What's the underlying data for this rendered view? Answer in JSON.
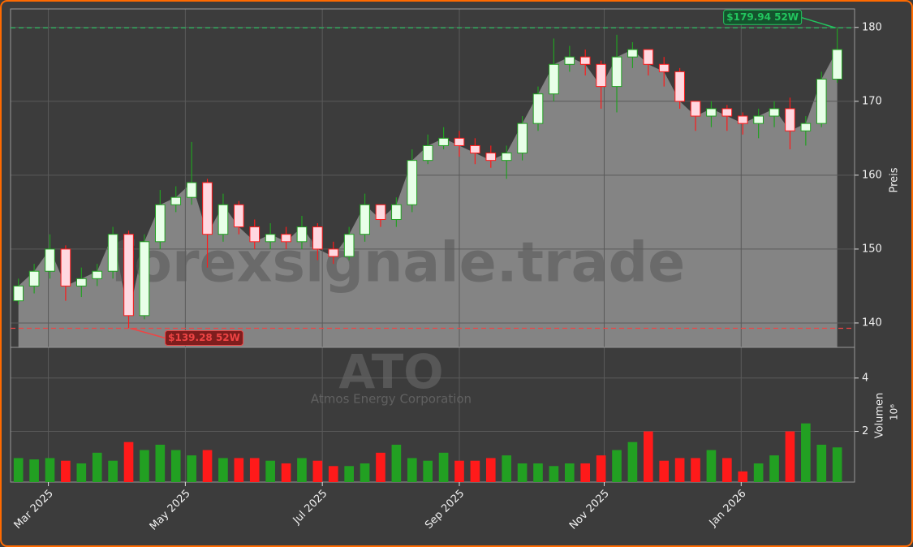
{
  "chart_data": {
    "type": "candlestick",
    "watermark": "forexsignale.trade",
    "ticker": "ATO",
    "company": "Atmos Energy Corporation",
    "ylabel": "Preis",
    "volume_label": "Volumen",
    "volume_unit": "10⁶",
    "up_color": "#22a022",
    "down_color": "#ff1a1a",
    "area_color": "#888888",
    "grid": true,
    "xlim": [
      -0.5,
      53.1
    ],
    "xticks": [
      {
        "value": 1.9,
        "label": "Mar 2025"
      },
      {
        "value": 10.6,
        "label": "May 2025"
      },
      {
        "value": 19.3,
        "label": "Jul 2025"
      },
      {
        "value": 28.0,
        "label": "Sep 2025"
      },
      {
        "value": 37.2,
        "label": "Nov 2025"
      },
      {
        "value": 45.9,
        "label": "Jan 2026"
      }
    ],
    "ylim": [
      136.7,
      182.5
    ],
    "yticks": [
      140,
      150,
      160,
      170,
      180
    ],
    "volume_ylim": [
      0.1,
      5.15
    ],
    "volume_yticks": [
      2,
      4
    ],
    "open": [
      143,
      145,
      147,
      150,
      145,
      146,
      147,
      152,
      141,
      151,
      156,
      157,
      159,
      152,
      156,
      153,
      151,
      152,
      151,
      153,
      150,
      149,
      152,
      156,
      154,
      156,
      162,
      164,
      165,
      164,
      163,
      162,
      163,
      167,
      171,
      175,
      176,
      175,
      172,
      176,
      177,
      175,
      174,
      170,
      168,
      169,
      168,
      167,
      168,
      169,
      166,
      167,
      173
    ],
    "high": [
      146,
      148,
      152,
      150.5,
      147.5,
      148,
      153,
      152.5,
      152,
      158,
      158.5,
      164.5,
      159.5,
      157.5,
      156.5,
      154,
      153.5,
      153,
      154.5,
      153.5,
      151,
      153,
      157.5,
      156,
      157,
      163.5,
      165.5,
      166.5,
      166,
      165,
      164,
      164,
      168,
      172,
      178.5,
      177.5,
      177,
      175.5,
      179,
      178,
      177,
      176,
      174.5,
      170,
      170,
      169.5,
      168.5,
      169,
      170,
      170.5,
      168,
      174,
      179.94
    ],
    "low": [
      142.5,
      144,
      146,
      143,
      143.5,
      145,
      146,
      139.28,
      140.5,
      150,
      155,
      156,
      147.5,
      151,
      152,
      150,
      150,
      150,
      150,
      148.5,
      148,
      148.5,
      151,
      153,
      153,
      155,
      161.5,
      163.5,
      162.5,
      161.5,
      161,
      159.5,
      162,
      166,
      170,
      174,
      173.5,
      169,
      168.5,
      174.5,
      173.5,
      172,
      169,
      166,
      166.5,
      166,
      165.5,
      165,
      166.5,
      163.5,
      164,
      166.5,
      172.5
    ],
    "close": [
      145,
      147,
      150,
      145,
      146,
      147,
      152,
      141,
      151,
      156,
      157,
      159,
      152,
      156,
      153,
      151,
      152,
      151,
      153,
      150,
      149,
      152,
      156,
      154,
      156,
      162,
      164,
      165,
      164,
      163,
      162,
      163,
      167,
      171,
      175,
      176,
      175,
      172,
      176,
      177,
      175,
      174,
      170,
      168,
      169,
      168,
      167,
      168,
      169,
      166,
      167,
      173,
      177
    ],
    "volume": [
      1.0,
      0.95,
      1.0,
      0.9,
      0.8,
      1.2,
      0.9,
      1.6,
      1.3,
      1.5,
      1.3,
      1.1,
      1.3,
      1.0,
      1.0,
      1.0,
      0.9,
      0.8,
      1.0,
      0.9,
      0.7,
      0.7,
      0.8,
      1.2,
      1.5,
      1.0,
      0.9,
      1.2,
      0.9,
      0.9,
      1.0,
      1.1,
      0.8,
      0.8,
      0.7,
      0.8,
      0.8,
      1.1,
      1.3,
      1.6,
      2.0,
      0.9,
      1.0,
      1.0,
      1.3,
      1.0,
      0.5,
      0.8,
      1.1,
      2.0,
      2.3,
      1.5,
      1.4
    ],
    "annotations": [
      {
        "label": "$179.94 52W",
        "value": 179.94,
        "index": 52,
        "color": "#22c55e"
      },
      {
        "label": "$139.28 52W",
        "value": 139.28,
        "index": 7,
        "color": "#ef4444"
      }
    ]
  }
}
